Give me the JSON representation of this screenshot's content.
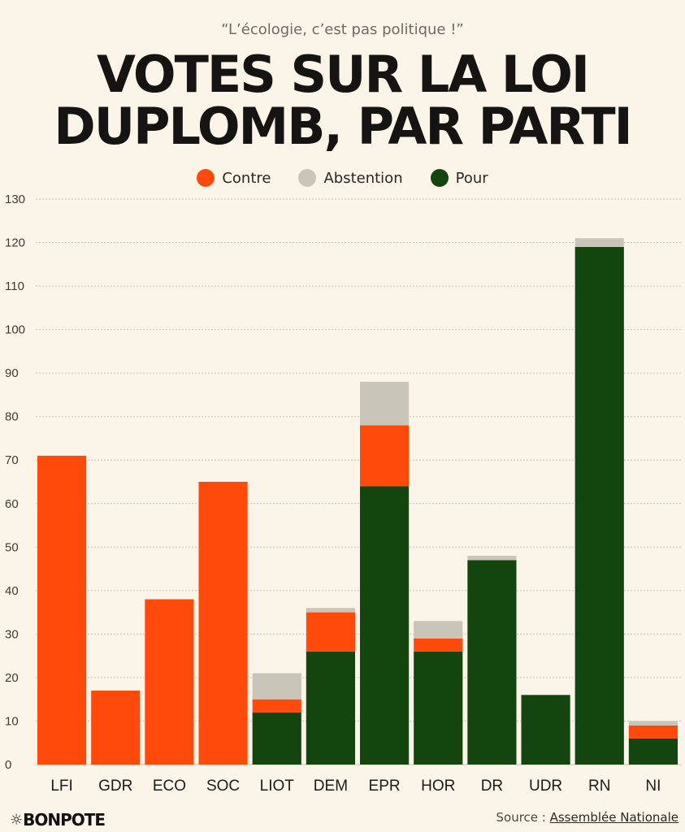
{
  "header": {
    "subtitle": "“L’écologie, c’est pas politique !”",
    "title_line1": "VOTES SUR LA LOI",
    "title_line2": "DUPLOMB, PAR PARTI"
  },
  "footer": {
    "logo": "BONPOTE",
    "source_label": "Source : ",
    "source_link": "Assemblée Nationale"
  },
  "colors": {
    "contre": "#ff4a0c",
    "abstention": "#c9c5b8",
    "pour": "#15450f",
    "background": "#fbf5e9",
    "grid": "#c8c2b6"
  },
  "chart_data": {
    "type": "bar",
    "stacked": true,
    "categories": [
      "LFI",
      "GDR",
      "ECO",
      "SOC",
      "LIOT",
      "DEM",
      "EPR",
      "HOR",
      "DR",
      "UDR",
      "RN",
      "NI"
    ],
    "series": [
      {
        "name": "Pour",
        "values": [
          0,
          0,
          0,
          0,
          12,
          26,
          64,
          26,
          47,
          16,
          119,
          6
        ]
      },
      {
        "name": "Contre",
        "values": [
          71,
          17,
          38,
          65,
          3,
          9,
          14,
          3,
          0,
          0,
          0,
          3
        ]
      },
      {
        "name": "Abstention",
        "values": [
          0,
          0,
          0,
          0,
          6,
          1,
          10,
          4,
          1,
          0,
          2,
          1
        ]
      }
    ],
    "legend": [
      "Contre",
      "Abstention",
      "Pour"
    ],
    "y_ticks": [
      0,
      10,
      20,
      30,
      40,
      50,
      60,
      70,
      80,
      90,
      100,
      110,
      120,
      130
    ],
    "ylim": [
      0,
      130
    ],
    "grid": true,
    "legend_position": "top-center"
  }
}
